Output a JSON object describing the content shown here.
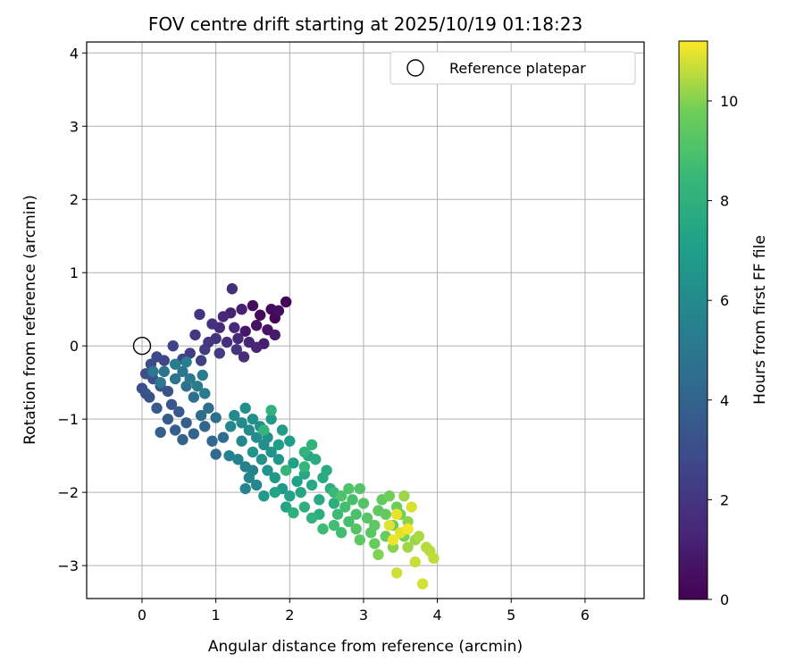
{
  "chart_data": {
    "type": "scatter",
    "title": "FOV centre drift starting at 2025/10/19 01:18:23",
    "xlabel": "Angular distance from reference (arcmin)",
    "ylabel": "Rotation from reference (arcmin)",
    "xlim": [
      -0.75,
      6.8
    ],
    "ylim": [
      -3.45,
      4.15
    ],
    "xticks": [
      0,
      1,
      2,
      3,
      4,
      5,
      6
    ],
    "yticks": [
      -3,
      -2,
      -1,
      0,
      1,
      2,
      3,
      4
    ],
    "grid": true,
    "legend": {
      "position": "top-right",
      "entries": [
        {
          "label": "Reference platepar",
          "marker": "open-circle"
        }
      ]
    },
    "reference_point": {
      "x": 0,
      "y": 0
    },
    "colorbar": {
      "label": "Hours from first FF file",
      "range": [
        0,
        11.2
      ],
      "ticks": [
        0,
        2,
        4,
        6,
        8,
        10
      ],
      "colormap": "viridis"
    },
    "series": [
      {
        "columns": [
          "x",
          "y",
          "hours"
        ],
        "points": [
          [
            1.95,
            0.6,
            0.1
          ],
          [
            1.8,
            0.38,
            0.2
          ],
          [
            1.6,
            0.42,
            0.3
          ],
          [
            1.75,
            0.5,
            0.35
          ],
          [
            1.5,
            0.55,
            0.4
          ],
          [
            1.85,
            0.48,
            0.5
          ],
          [
            1.55,
            0.28,
            0.6
          ],
          [
            1.7,
            0.22,
            0.7
          ],
          [
            1.4,
            0.2,
            0.8
          ],
          [
            1.8,
            0.15,
            0.9
          ],
          [
            1.65,
            0.03,
            1.0
          ],
          [
            1.35,
            0.5,
            1.1
          ],
          [
            1.2,
            0.45,
            1.2
          ],
          [
            1.45,
            0.05,
            1.25
          ],
          [
            1.55,
            -0.02,
            1.3
          ],
          [
            1.3,
            0.1,
            1.4
          ],
          [
            1.1,
            0.4,
            1.45
          ],
          [
            1.25,
            0.25,
            1.5
          ],
          [
            1.05,
            0.25,
            1.55
          ],
          [
            1.38,
            -0.15,
            1.6
          ],
          [
            1.22,
            0.78,
            1.65
          ],
          [
            1.15,
            0.05,
            1.7
          ],
          [
            0.95,
            0.3,
            1.8
          ],
          [
            0.78,
            0.43,
            1.85
          ],
          [
            1.0,
            0.1,
            1.9
          ],
          [
            1.28,
            -0.05,
            1.95
          ],
          [
            0.9,
            0.05,
            2.0
          ],
          [
            0.72,
            0.15,
            2.1
          ],
          [
            0.85,
            -0.05,
            2.2
          ],
          [
            1.05,
            -0.1,
            2.25
          ],
          [
            0.65,
            -0.1,
            2.35
          ],
          [
            0.8,
            -0.2,
            2.45
          ],
          [
            0.55,
            -0.18,
            2.55
          ],
          [
            0.42,
            0.0,
            2.6
          ],
          [
            0.3,
            -0.2,
            2.7
          ],
          [
            0.2,
            -0.15,
            2.8
          ],
          [
            0.12,
            -0.25,
            2.9
          ],
          [
            0.05,
            -0.38,
            3.0
          ],
          [
            0.15,
            -0.45,
            3.05
          ],
          [
            0.0,
            -0.58,
            3.1
          ],
          [
            0.25,
            -0.55,
            3.15
          ],
          [
            0.1,
            -0.7,
            3.2
          ],
          [
            0.35,
            -0.62,
            3.25
          ],
          [
            0.05,
            -0.65,
            3.3
          ],
          [
            0.4,
            -0.8,
            3.4
          ],
          [
            0.2,
            -0.85,
            3.5
          ],
          [
            0.5,
            -0.9,
            3.6
          ],
          [
            0.35,
            -1.0,
            3.65
          ],
          [
            0.6,
            -1.05,
            3.7
          ],
          [
            0.45,
            -1.15,
            3.8
          ],
          [
            0.25,
            -1.18,
            3.85
          ],
          [
            0.55,
            -1.28,
            3.95
          ],
          [
            0.7,
            -1.2,
            4.0
          ],
          [
            0.85,
            -1.1,
            4.1
          ],
          [
            0.95,
            -1.3,
            4.2
          ],
          [
            1.0,
            -1.48,
            4.3
          ],
          [
            1.1,
            -1.25,
            4.4
          ],
          [
            0.8,
            -0.95,
            4.45
          ],
          [
            0.9,
            -0.85,
            4.5
          ],
          [
            1.0,
            -0.98,
            4.55
          ],
          [
            0.7,
            -0.7,
            4.6
          ],
          [
            0.6,
            -0.55,
            4.7
          ],
          [
            0.45,
            -0.45,
            4.8
          ],
          [
            0.3,
            -0.35,
            4.85
          ],
          [
            0.55,
            -0.35,
            4.9
          ],
          [
            0.15,
            -0.35,
            5.0
          ],
          [
            0.25,
            -0.5,
            5.05
          ],
          [
            0.65,
            -0.45,
            5.1
          ],
          [
            0.75,
            -0.55,
            5.2
          ],
          [
            0.85,
            -0.65,
            5.25
          ],
          [
            0.82,
            -0.4,
            5.3
          ],
          [
            0.45,
            -0.25,
            5.35
          ],
          [
            0.6,
            -0.22,
            5.4
          ],
          [
            1.18,
            -1.5,
            5.5
          ],
          [
            1.3,
            -1.55,
            5.55
          ],
          [
            1.4,
            -1.65,
            5.6
          ],
          [
            1.5,
            -1.7,
            5.65
          ],
          [
            1.4,
            -1.95,
            5.7
          ],
          [
            1.45,
            -1.8,
            5.75
          ],
          [
            1.55,
            -1.9,
            5.8
          ],
          [
            1.35,
            -1.3,
            5.85
          ],
          [
            1.2,
            -1.1,
            5.9
          ],
          [
            1.25,
            -0.95,
            5.95
          ],
          [
            1.35,
            -1.05,
            6.0
          ],
          [
            1.45,
            -1.15,
            6.05
          ],
          [
            1.55,
            -1.25,
            6.1
          ],
          [
            1.65,
            -1.35,
            6.15
          ],
          [
            1.4,
            -0.85,
            6.2
          ],
          [
            1.5,
            -1.0,
            6.25
          ],
          [
            1.6,
            -1.1,
            6.3
          ],
          [
            1.7,
            -1.25,
            6.35
          ],
          [
            1.62,
            -1.55,
            6.4
          ],
          [
            1.7,
            -1.7,
            6.45
          ],
          [
            1.5,
            -1.45,
            6.5
          ],
          [
            1.75,
            -1.45,
            6.55
          ],
          [
            1.85,
            -1.55,
            6.6
          ],
          [
            1.8,
            -1.8,
            6.7
          ],
          [
            1.9,
            -1.95,
            6.75
          ],
          [
            1.65,
            -2.05,
            6.8
          ],
          [
            1.75,
            -1.0,
            6.85
          ],
          [
            1.9,
            -1.15,
            6.9
          ],
          [
            2.0,
            -1.3,
            7.0
          ],
          [
            1.85,
            -1.35,
            7.05
          ],
          [
            2.05,
            -1.6,
            7.1
          ],
          [
            2.1,
            -1.85,
            7.15
          ],
          [
            2.0,
            -2.05,
            7.2
          ],
          [
            1.8,
            -2.0,
            7.3
          ],
          [
            1.95,
            -2.2,
            7.35
          ],
          [
            2.15,
            -2.0,
            7.4
          ],
          [
            2.2,
            -1.75,
            7.45
          ],
          [
            2.25,
            -1.5,
            7.5
          ],
          [
            2.3,
            -1.9,
            7.55
          ],
          [
            2.4,
            -2.1,
            7.6
          ],
          [
            2.45,
            -1.8,
            7.65
          ],
          [
            2.35,
            -1.55,
            7.7
          ],
          [
            2.5,
            -1.7,
            7.75
          ],
          [
            2.55,
            -1.95,
            7.8
          ],
          [
            2.4,
            -2.3,
            7.85
          ],
          [
            2.6,
            -2.15,
            7.9
          ],
          [
            2.2,
            -2.2,
            7.95
          ],
          [
            2.05,
            -2.28,
            8.0
          ],
          [
            2.3,
            -2.35,
            8.05
          ],
          [
            1.75,
            -0.88,
            8.1
          ],
          [
            2.2,
            -1.45,
            8.15
          ],
          [
            2.3,
            -1.35,
            8.2
          ],
          [
            1.65,
            -1.15,
            8.25
          ],
          [
            1.95,
            -1.7,
            8.3
          ],
          [
            2.2,
            -1.65,
            8.4
          ],
          [
            2.6,
            -2.0,
            8.5
          ],
          [
            2.65,
            -2.3,
            8.55
          ],
          [
            2.45,
            -2.5,
            8.6
          ],
          [
            2.7,
            -2.55,
            8.7
          ],
          [
            2.6,
            -2.45,
            8.75
          ],
          [
            2.75,
            -2.2,
            8.8
          ],
          [
            2.8,
            -2.4,
            8.85
          ],
          [
            2.85,
            -2.1,
            8.9
          ],
          [
            2.9,
            -2.3,
            8.95
          ],
          [
            2.7,
            -2.05,
            9.0
          ],
          [
            2.8,
            -1.95,
            9.05
          ],
          [
            2.95,
            -1.95,
            9.1
          ],
          [
            3.0,
            -2.15,
            9.15
          ],
          [
            2.9,
            -2.5,
            9.2
          ],
          [
            3.05,
            -2.35,
            9.25
          ],
          [
            3.1,
            -2.55,
            9.3
          ],
          [
            2.95,
            -2.65,
            9.35
          ],
          [
            3.15,
            -2.45,
            9.4
          ],
          [
            3.2,
            -2.25,
            9.45
          ],
          [
            3.25,
            -2.1,
            9.5
          ],
          [
            3.3,
            -2.3,
            9.55
          ],
          [
            3.15,
            -2.7,
            9.6
          ],
          [
            3.3,
            -2.6,
            9.65
          ],
          [
            3.4,
            -2.45,
            9.7
          ],
          [
            3.45,
            -2.2,
            9.75
          ],
          [
            3.35,
            -2.05,
            9.8
          ],
          [
            3.5,
            -2.3,
            9.85
          ],
          [
            3.55,
            -2.6,
            9.9
          ],
          [
            3.2,
            -2.85,
            10.0
          ],
          [
            3.4,
            -2.75,
            10.05
          ],
          [
            3.6,
            -2.4,
            10.1
          ],
          [
            3.7,
            -2.65,
            10.2
          ],
          [
            3.55,
            -2.05,
            10.25
          ],
          [
            3.6,
            -2.75,
            10.3
          ],
          [
            3.75,
            -2.6,
            10.4
          ],
          [
            3.85,
            -2.75,
            10.5
          ],
          [
            3.9,
            -2.8,
            10.55
          ],
          [
            3.95,
            -2.9,
            10.6
          ],
          [
            3.7,
            -2.95,
            10.7
          ],
          [
            3.45,
            -3.1,
            10.75
          ],
          [
            3.8,
            -3.25,
            10.8
          ],
          [
            3.65,
            -2.2,
            10.85
          ],
          [
            3.35,
            -2.45,
            10.9
          ],
          [
            3.5,
            -2.55,
            10.95
          ],
          [
            3.45,
            -2.3,
            11.0
          ],
          [
            3.4,
            -2.65,
            11.05
          ],
          [
            3.6,
            -2.5,
            11.1
          ]
        ]
      }
    ]
  }
}
